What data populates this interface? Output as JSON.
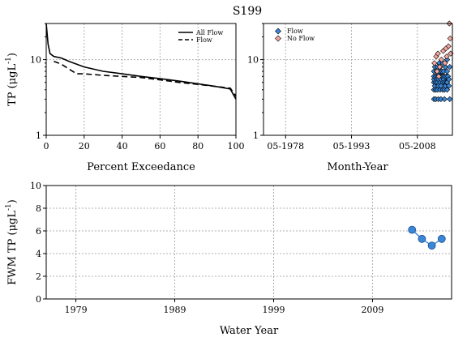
{
  "title": "S199",
  "chart_data": [
    {
      "type": "line",
      "id": "exceedance",
      "xlabel": "Percent Exceedance",
      "ylabel": "TP (μgL⁻¹)",
      "ylabel_main": "TP (μgL",
      "ylabel_sup": "-1",
      "ylabel_close": ")",
      "xlim": [
        0,
        100
      ],
      "ylim": [
        1,
        30
      ],
      "yscale": "log",
      "x_ticks": [
        0,
        20,
        40,
        60,
        80,
        100
      ],
      "x_tick_labels": [
        "0",
        "20",
        "40",
        "60",
        "80",
        "100"
      ],
      "y_ticks": [
        1,
        10
      ],
      "y_tick_labels": [
        "1",
        "10"
      ],
      "grid": true,
      "legend_position": "top-right",
      "series": [
        {
          "name": "All Flow",
          "style": "solid",
          "points": [
            [
              0,
              30
            ],
            [
              1,
              16
            ],
            [
              2,
              12
            ],
            [
              4,
              11
            ],
            [
              8,
              10.5
            ],
            [
              12,
              9.5
            ],
            [
              20,
              8
            ],
            [
              30,
              7
            ],
            [
              40,
              6.5
            ],
            [
              50,
              6
            ],
            [
              60,
              5.6
            ],
            [
              70,
              5.2
            ],
            [
              80,
              4.8
            ],
            [
              90,
              4.4
            ],
            [
              97,
              4.1
            ],
            [
              100,
              3
            ]
          ]
        },
        {
          "name": "Flow",
          "style": "dashed",
          "points": [
            [
              4,
              9.5
            ],
            [
              8,
              8.7
            ],
            [
              12,
              7.5
            ],
            [
              16,
              6.5
            ],
            [
              20,
              6.5
            ],
            [
              30,
              6.2
            ],
            [
              40,
              6
            ],
            [
              50,
              5.8
            ],
            [
              60,
              5.4
            ],
            [
              70,
              5
            ],
            [
              80,
              4.7
            ],
            [
              90,
              4.4
            ],
            [
              97,
              4.2
            ],
            [
              100,
              3.3
            ]
          ]
        }
      ]
    },
    {
      "type": "scatter",
      "id": "month-year",
      "xlabel": "Month-Year",
      "ylim": [
        1,
        30
      ],
      "yscale": "log",
      "xlim": [
        1973.3,
        2016.3
      ],
      "x_ticks": [
        1978.33,
        1993.33,
        2008.33
      ],
      "x_tick_labels": [
        "05-1978",
        "05-1993",
        "05-2008"
      ],
      "y_ticks": [
        1,
        10
      ],
      "y_tick_labels": [
        "1",
        "10"
      ],
      "grid": true,
      "legend_position": "top-left",
      "series": [
        {
          "name": "Flow",
          "color": "#3a86d8",
          "marker": "diamond",
          "points": [
            [
              2012.1,
              3
            ],
            [
              2012.1,
              4
            ],
            [
              2012.1,
              5
            ],
            [
              2012.1,
              5.5
            ],
            [
              2012.1,
              6
            ],
            [
              2012.1,
              7
            ],
            [
              2012.3,
              8
            ],
            [
              2012.3,
              4.5
            ],
            [
              2012.5,
              3
            ],
            [
              2012.5,
              4
            ],
            [
              2012.5,
              5
            ],
            [
              2012.5,
              6
            ],
            [
              2012.7,
              7
            ],
            [
              2012.7,
              5.5
            ],
            [
              2012.9,
              4
            ],
            [
              2012.9,
              5
            ],
            [
              2012.9,
              6
            ],
            [
              2012.9,
              8
            ],
            [
              2013.1,
              3
            ],
            [
              2013.1,
              4.5
            ],
            [
              2013.1,
              5.5
            ],
            [
              2013.1,
              6.5
            ],
            [
              2013.3,
              7
            ],
            [
              2013.3,
              9
            ],
            [
              2013.5,
              4
            ],
            [
              2013.5,
              5
            ],
            [
              2013.5,
              6
            ],
            [
              2013.5,
              8
            ],
            [
              2013.7,
              3
            ],
            [
              2013.7,
              4.5
            ],
            [
              2013.7,
              5.5
            ],
            [
              2013.9,
              6
            ],
            [
              2013.9,
              7
            ],
            [
              2014.1,
              4
            ],
            [
              2014.1,
              5
            ],
            [
              2014.1,
              6
            ],
            [
              2014.1,
              9
            ],
            [
              2014.3,
              5.5
            ],
            [
              2014.3,
              7
            ],
            [
              2014.5,
              3
            ],
            [
              2014.5,
              4
            ],
            [
              2014.5,
              5
            ],
            [
              2014.5,
              6
            ],
            [
              2014.7,
              4.5
            ],
            [
              2014.7,
              8
            ],
            [
              2014.9,
              5
            ],
            [
              2014.9,
              6
            ],
            [
              2015.1,
              4
            ],
            [
              2015.1,
              5
            ],
            [
              2015.1,
              7
            ],
            [
              2015.1,
              10
            ],
            [
              2015.3,
              6
            ],
            [
              2015.5,
              4.5
            ],
            [
              2015.5,
              5.5
            ],
            [
              2015.7,
              3
            ],
            [
              2015.7,
              8
            ]
          ]
        },
        {
          "name": "No Flow",
          "color": "#f4a8a0",
          "marker": "diamond",
          "points": [
            [
              2012.2,
              9
            ],
            [
              2012.6,
              11
            ],
            [
              2013.0,
              12
            ],
            [
              2013.4,
              8
            ],
            [
              2013.8,
              10
            ],
            [
              2014.2,
              13
            ],
            [
              2014.6,
              9
            ],
            [
              2015.0,
              11
            ],
            [
              2015.4,
              15
            ],
            [
              2015.6,
              30
            ],
            [
              2015.8,
              19
            ],
            [
              2015.9,
              12
            ],
            [
              2014.8,
              14
            ],
            [
              2013.2,
              6
            ],
            [
              2012.8,
              7
            ]
          ]
        }
      ]
    },
    {
      "type": "line",
      "id": "fwm",
      "xlabel": "Water Year",
      "ylabel": "FWM TP (μgL⁻¹)",
      "ylabel_main": "FWM TP (μgL",
      "ylabel_sup": "-1",
      "ylabel_close": ")",
      "xlim": [
        1976,
        2017
      ],
      "ylim": [
        0,
        10
      ],
      "x_ticks": [
        1979,
        1989,
        1999,
        2009
      ],
      "x_tick_labels": [
        "1979",
        "1989",
        "1999",
        "2009"
      ],
      "y_ticks": [
        0,
        2,
        4,
        6,
        8,
        10
      ],
      "y_tick_labels": [
        "0",
        "2",
        "4",
        "6",
        "8",
        "10"
      ],
      "grid": true,
      "series": [
        {
          "name": "",
          "color": "#3a86d8",
          "points": [
            [
              2013,
              6.1
            ],
            [
              2014,
              5.3
            ],
            [
              2015,
              4.7
            ],
            [
              2016,
              5.3
            ]
          ]
        }
      ]
    }
  ]
}
